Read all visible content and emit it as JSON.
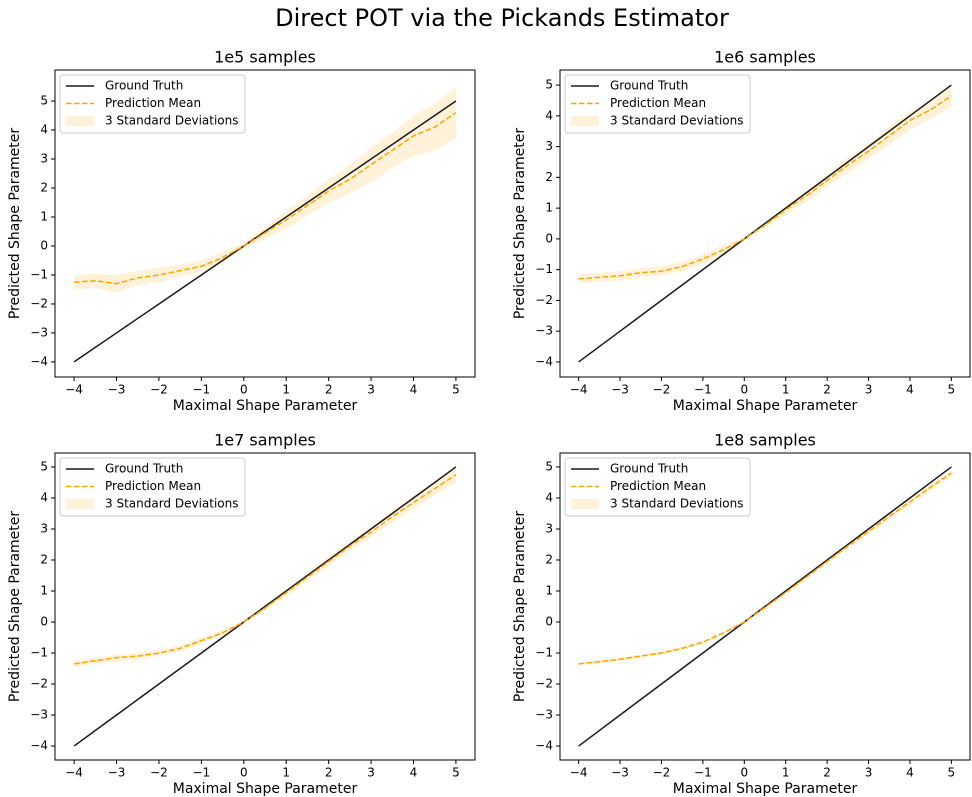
{
  "title": "Direct POT via the Pickands Estimator",
  "chart_data": [
    {
      "type": "line",
      "title": "1e5 samples",
      "x_label": "Maximal Shape Parameter",
      "y_label": "Predicted Shape Parameter",
      "x": [
        -4,
        -3.5,
        -3,
        -2.5,
        -2,
        -1.5,
        -1,
        -0.5,
        0,
        0.5,
        1,
        1.5,
        2,
        2.5,
        3,
        3.5,
        4,
        4.5,
        5
      ],
      "series": [
        {
          "name": "Ground Truth",
          "color": "#1a1a1a",
          "style": "solid",
          "values": [
            -4,
            -3.5,
            -3,
            -2.5,
            -2,
            -1.5,
            -1,
            -0.5,
            0,
            0.5,
            1,
            1.5,
            2,
            2.5,
            3,
            3.5,
            4,
            4.5,
            5
          ]
        },
        {
          "name": "Prediction Mean",
          "color": "#ffa500",
          "style": "dashed",
          "values": [
            -1.25,
            -1.2,
            -1.3,
            -1.1,
            -1.0,
            -0.85,
            -0.7,
            -0.4,
            0,
            0.45,
            0.9,
            1.4,
            1.9,
            2.3,
            2.8,
            3.3,
            3.8,
            4.1,
            4.6
          ]
        },
        {
          "name": "3 Standard Deviations",
          "color": "#ffa500",
          "style": "band",
          "lower": [
            -1.5,
            -1.45,
            -1.6,
            -1.35,
            -1.25,
            -1.05,
            -0.9,
            -0.6,
            -0.1,
            0.25,
            0.6,
            1.05,
            1.5,
            1.8,
            2.2,
            2.7,
            3.1,
            3.3,
            3.7
          ],
          "upper": [
            -1.0,
            -0.95,
            -1.0,
            -0.85,
            -0.75,
            -0.65,
            -0.5,
            -0.2,
            0.1,
            0.65,
            1.2,
            1.75,
            2.3,
            2.8,
            3.4,
            3.9,
            4.5,
            4.9,
            5.5
          ]
        }
      ],
      "xlim": [
        -4.45,
        5.45
      ],
      "ylim": [
        -4.52,
        6.07
      ],
      "xticks": [
        {
          "value": -4,
          "label": "−4"
        },
        {
          "value": -3,
          "label": "−3"
        },
        {
          "value": -2,
          "label": "−2"
        },
        {
          "value": -1,
          "label": "−1"
        },
        0,
        1,
        2,
        3,
        4,
        5
      ],
      "yticks": [
        {
          "value": -4,
          "label": "−4"
        },
        {
          "value": -3,
          "label": "−3"
        },
        {
          "value": -2,
          "label": "−2"
        },
        {
          "value": -1,
          "label": "−1"
        },
        0,
        1,
        2,
        3,
        4,
        5
      ],
      "legend": "upper left"
    },
    {
      "type": "line",
      "title": "1e6 samples",
      "x_label": "Maximal Shape Parameter",
      "y_label": "Predicted Shape Parameter",
      "x": [
        -4,
        -3.5,
        -3,
        -2.5,
        -2,
        -1.5,
        -1,
        -0.5,
        0,
        0.5,
        1,
        1.5,
        2,
        2.5,
        3,
        3.5,
        4,
        4.5,
        5
      ],
      "series": [
        {
          "name": "Ground Truth",
          "color": "#1a1a1a",
          "style": "solid",
          "values": [
            -4,
            -3.5,
            -3,
            -2.5,
            -2,
            -1.5,
            -1,
            -0.5,
            0,
            0.5,
            1,
            1.5,
            2,
            2.5,
            3,
            3.5,
            4,
            4.5,
            5
          ]
        },
        {
          "name": "Prediction Mean",
          "color": "#ffa500",
          "style": "dashed",
          "values": [
            -1.3,
            -1.25,
            -1.2,
            -1.1,
            -1.05,
            -0.9,
            -0.65,
            -0.35,
            0,
            0.45,
            0.95,
            1.4,
            1.9,
            2.4,
            2.85,
            3.35,
            3.85,
            4.2,
            4.65
          ]
        },
        {
          "name": "3 Standard Deviations",
          "color": "#ffa500",
          "style": "band",
          "lower": [
            -1.45,
            -1.4,
            -1.35,
            -1.25,
            -1.2,
            -1.05,
            -0.8,
            -0.5,
            -0.05,
            0.35,
            0.8,
            1.2,
            1.7,
            2.15,
            2.6,
            3.05,
            3.55,
            3.9,
            4.3
          ],
          "upper": [
            -1.15,
            -1.1,
            -1.05,
            -0.95,
            -0.9,
            -0.75,
            -0.5,
            -0.2,
            0.05,
            0.55,
            1.1,
            1.6,
            2.1,
            2.65,
            3.1,
            3.65,
            4.15,
            4.5,
            5.0
          ]
        }
      ],
      "xlim": [
        -4.45,
        5.45
      ],
      "ylim": [
        -4.49,
        5.49
      ],
      "xticks": [
        {
          "value": -4,
          "label": "−4"
        },
        {
          "value": -3,
          "label": "−3"
        },
        {
          "value": -2,
          "label": "−2"
        },
        {
          "value": -1,
          "label": "−1"
        },
        0,
        1,
        2,
        3,
        4,
        5
      ],
      "yticks": [
        {
          "value": -4,
          "label": "−4"
        },
        {
          "value": -3,
          "label": "−3"
        },
        {
          "value": -2,
          "label": "−2"
        },
        {
          "value": -1,
          "label": "−1"
        },
        0,
        1,
        2,
        3,
        4,
        5
      ],
      "legend": "upper left"
    },
    {
      "type": "line",
      "title": "1e7 samples",
      "x_label": "Maximal Shape Parameter",
      "y_label": "Predicted Shape Parameter",
      "x": [
        -4,
        -3.5,
        -3,
        -2.5,
        -2,
        -1.5,
        -1,
        -0.5,
        0,
        0.5,
        1,
        1.5,
        2,
        2.5,
        3,
        3.5,
        4,
        4.5,
        5
      ],
      "series": [
        {
          "name": "Ground Truth",
          "color": "#1a1a1a",
          "style": "solid",
          "values": [
            -4,
            -3.5,
            -3,
            -2.5,
            -2,
            -1.5,
            -1,
            -0.5,
            0,
            0.5,
            1,
            1.5,
            2,
            2.5,
            3,
            3.5,
            4,
            4.5,
            5
          ]
        },
        {
          "name": "Prediction Mean",
          "color": "#ffa500",
          "style": "dashed",
          "values": [
            -1.35,
            -1.25,
            -1.15,
            -1.1,
            -1.0,
            -0.85,
            -0.6,
            -0.35,
            0,
            0.45,
            0.95,
            1.45,
            1.95,
            2.45,
            2.9,
            3.4,
            3.85,
            4.3,
            4.75
          ]
        },
        {
          "name": "3 Standard Deviations",
          "color": "#ffa500",
          "style": "band",
          "lower": [
            -1.45,
            -1.35,
            -1.25,
            -1.2,
            -1.1,
            -0.95,
            -0.7,
            -0.45,
            -0.05,
            0.35,
            0.85,
            1.35,
            1.8,
            2.3,
            2.75,
            3.2,
            3.65,
            4.1,
            4.5
          ],
          "upper": [
            -1.25,
            -1.15,
            -1.05,
            -1.0,
            -0.9,
            -0.75,
            -0.5,
            -0.25,
            0.05,
            0.55,
            1.05,
            1.55,
            2.1,
            2.6,
            3.05,
            3.6,
            4.05,
            4.5,
            5.0
          ]
        }
      ],
      "xlim": [
        -4.45,
        5.45
      ],
      "ylim": [
        -4.45,
        5.45
      ],
      "xticks": [
        {
          "value": -4,
          "label": "−4"
        },
        {
          "value": -3,
          "label": "−3"
        },
        {
          "value": -2,
          "label": "−2"
        },
        {
          "value": -1,
          "label": "−1"
        },
        0,
        1,
        2,
        3,
        4,
        5
      ],
      "yticks": [
        {
          "value": -4,
          "label": "−4"
        },
        {
          "value": -3,
          "label": "−3"
        },
        {
          "value": -2,
          "label": "−2"
        },
        {
          "value": -1,
          "label": "−1"
        },
        0,
        1,
        2,
        3,
        4,
        5
      ],
      "legend": "upper left"
    },
    {
      "type": "line",
      "title": "1e8 samples",
      "x_label": "Maximal Shape Parameter",
      "y_label": "Predicted Shape Parameter",
      "x": [
        -4,
        -3.5,
        -3,
        -2.5,
        -2,
        -1.5,
        -1,
        -0.5,
        0,
        0.5,
        1,
        1.5,
        2,
        2.5,
        3,
        3.5,
        4,
        4.5,
        5
      ],
      "series": [
        {
          "name": "Ground Truth",
          "color": "#1a1a1a",
          "style": "solid",
          "values": [
            -4,
            -3.5,
            -3,
            -2.5,
            -2,
            -1.5,
            -1,
            -0.5,
            0,
            0.5,
            1,
            1.5,
            2,
            2.5,
            3,
            3.5,
            4,
            4.5,
            5
          ]
        },
        {
          "name": "Prediction Mean",
          "color": "#ffa500",
          "style": "dashed",
          "values": [
            -1.35,
            -1.28,
            -1.2,
            -1.1,
            -1.0,
            -0.85,
            -0.65,
            -0.35,
            0,
            0.47,
            0.95,
            1.45,
            1.95,
            2.45,
            2.92,
            3.4,
            3.88,
            4.35,
            4.8
          ]
        },
        {
          "name": "3 Standard Deviations",
          "color": "#ffa500",
          "style": "band",
          "lower": [
            -1.4,
            -1.33,
            -1.25,
            -1.15,
            -1.05,
            -0.9,
            -0.7,
            -0.4,
            -0.02,
            0.42,
            0.9,
            1.4,
            1.9,
            2.37,
            2.84,
            3.3,
            3.78,
            4.25,
            4.68
          ],
          "upper": [
            -1.3,
            -1.23,
            -1.15,
            -1.05,
            -0.95,
            -0.8,
            -0.6,
            -0.3,
            0.02,
            0.52,
            1.0,
            1.5,
            2.0,
            2.53,
            3.0,
            3.5,
            3.98,
            4.45,
            4.92
          ]
        }
      ],
      "xlim": [
        -4.45,
        5.45
      ],
      "ylim": [
        -4.45,
        5.45
      ],
      "xticks": [
        {
          "value": -4,
          "label": "−4"
        },
        {
          "value": -3,
          "label": "−3"
        },
        {
          "value": -2,
          "label": "−2"
        },
        {
          "value": -1,
          "label": "−1"
        },
        0,
        1,
        2,
        3,
        4,
        5
      ],
      "yticks": [
        {
          "value": -4,
          "label": "−4"
        },
        {
          "value": -3,
          "label": "−3"
        },
        {
          "value": -2,
          "label": "−2"
        },
        {
          "value": -1,
          "label": "−1"
        },
        0,
        1,
        2,
        3,
        4,
        5
      ],
      "legend": "upper left"
    }
  ]
}
